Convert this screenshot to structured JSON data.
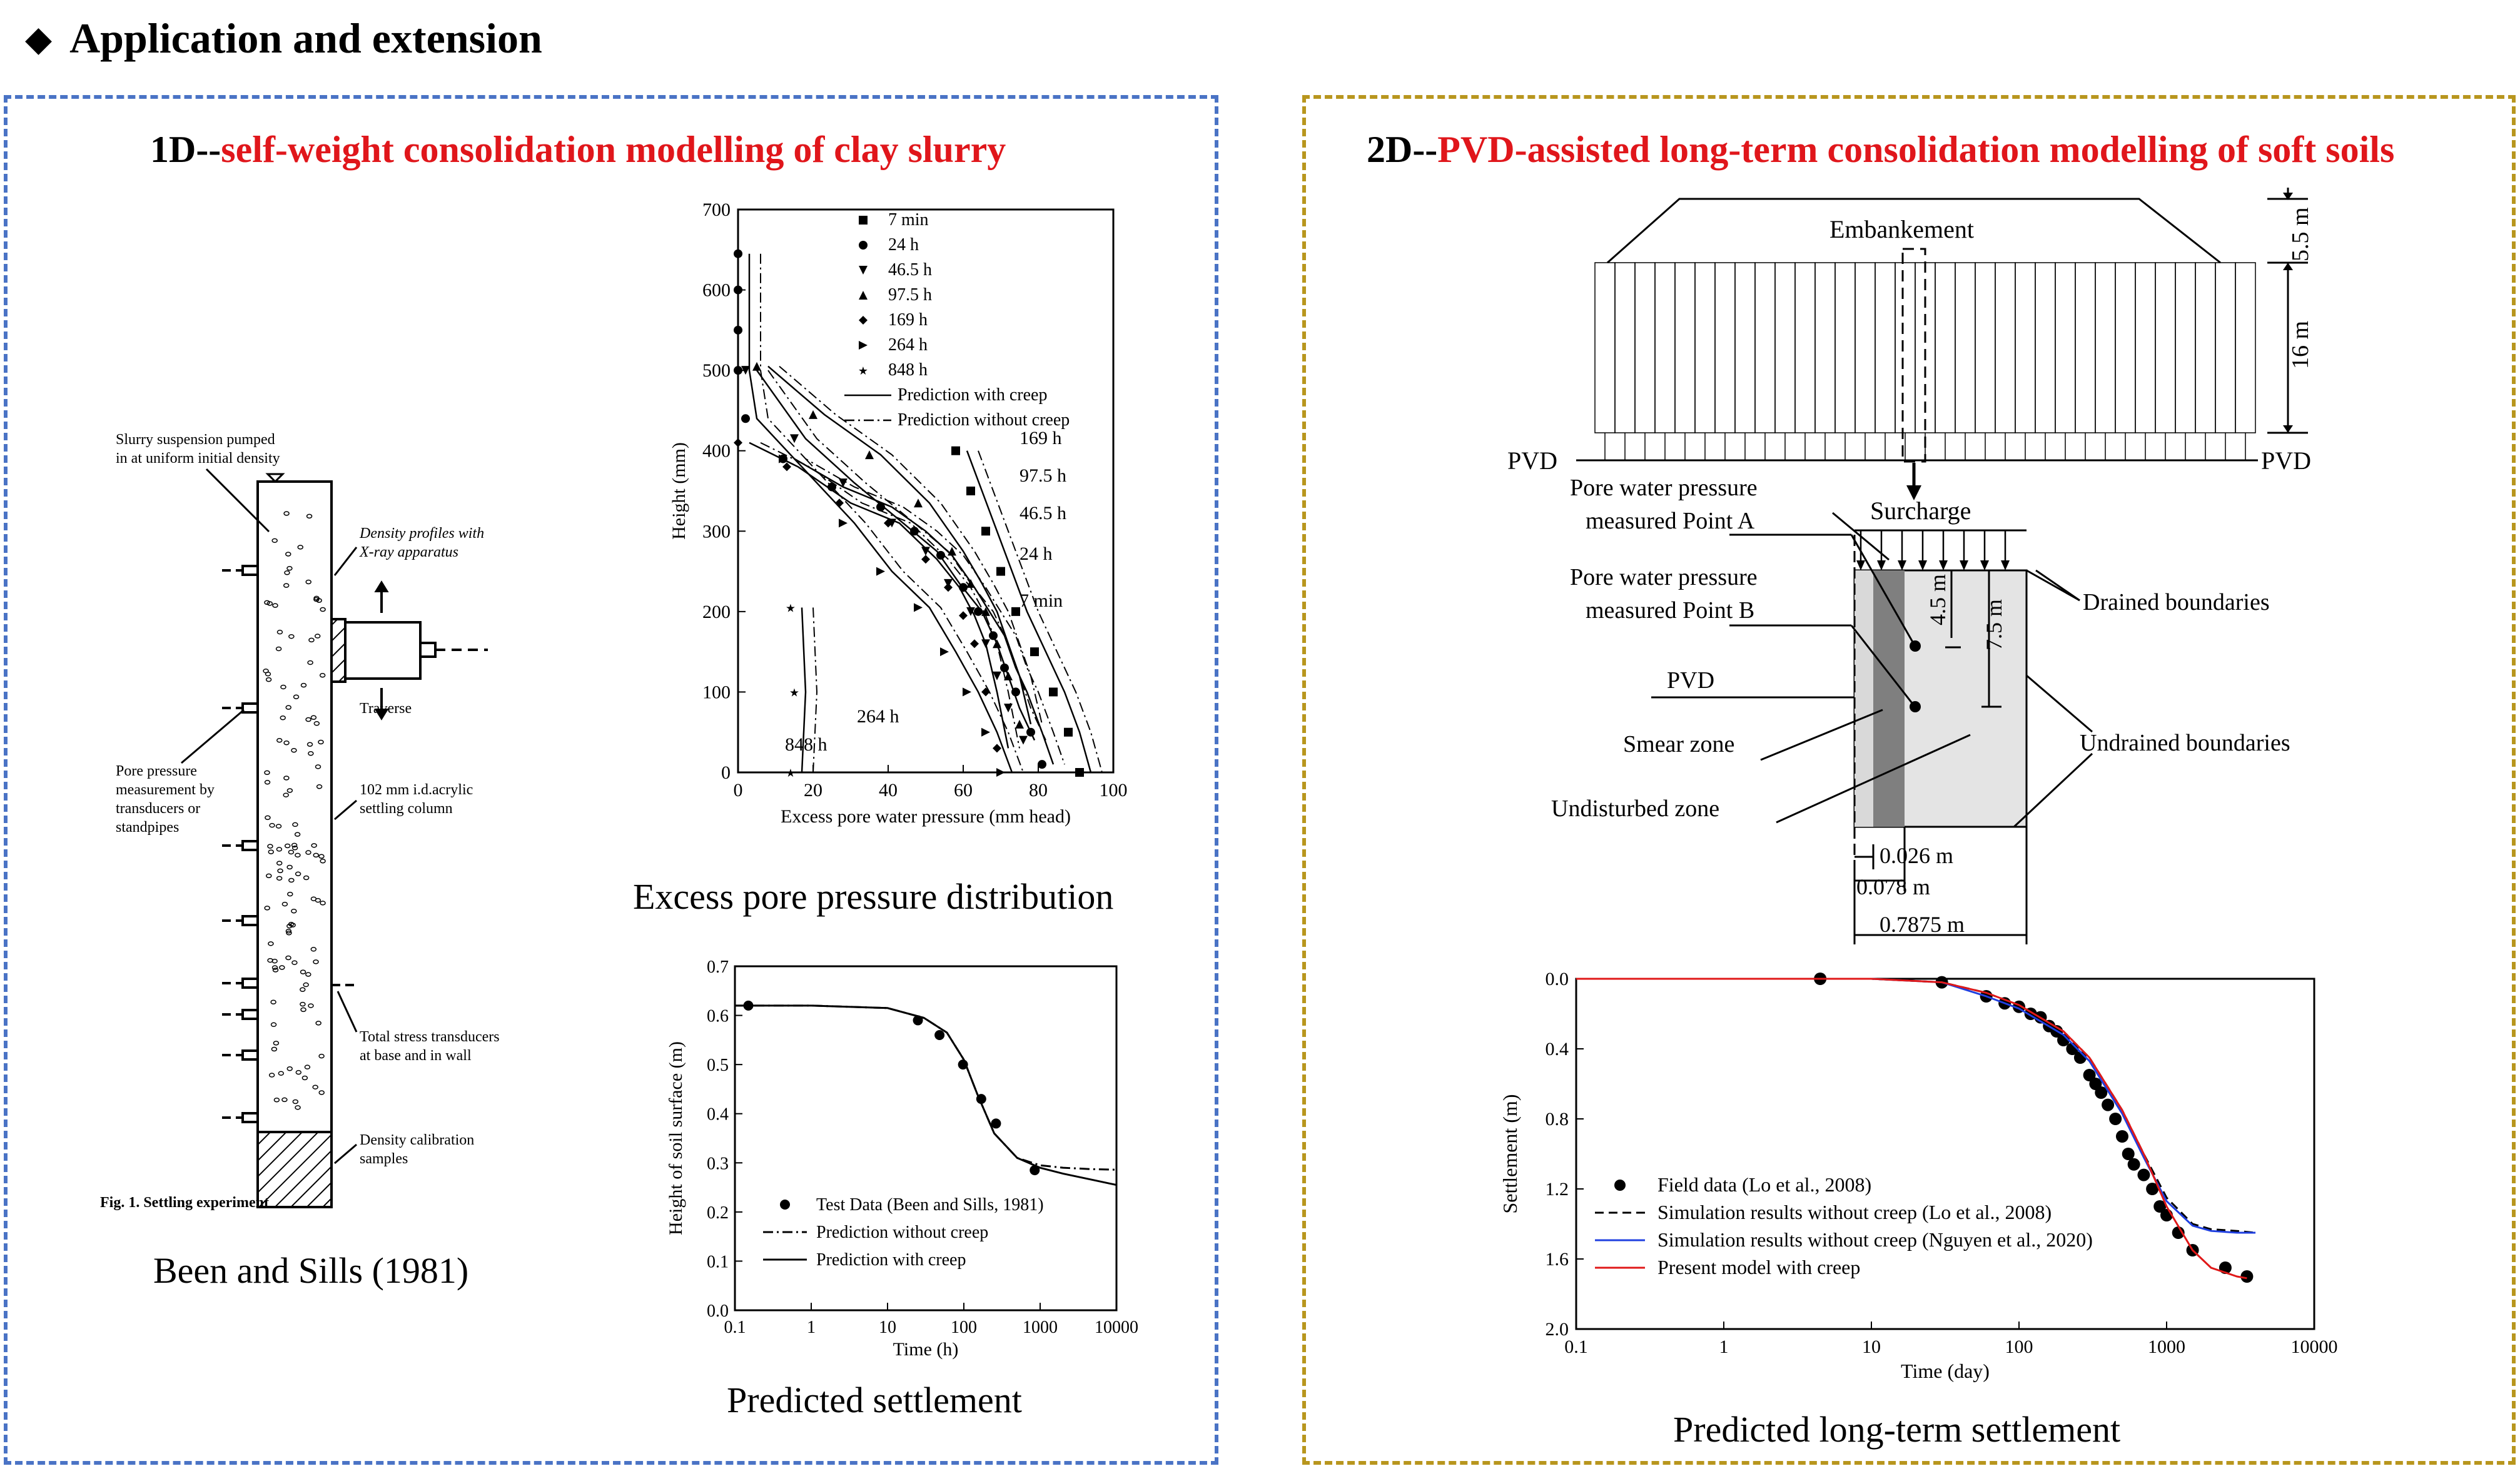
{
  "heading": {
    "icon": "black-diamond-icon",
    "text": "Application and extension"
  },
  "left_panel": {
    "title_prefix": "1D--",
    "title_red": "self-weight consolidation modelling of clay slurry",
    "experiment": {
      "labels": {
        "slurry": [
          "Slurry suspension pumped",
          "in at uniform initial density"
        ],
        "density": [
          "Density profiles with",
          "X-ray apparatus"
        ],
        "traverse": "Traverse",
        "pore": [
          "Pore pressure",
          "measurement by",
          "transducers or",
          "standpipes"
        ],
        "column": [
          "102 mm i.d.acrylic",
          "settling column"
        ],
        "stress": [
          "Total stress transducers",
          "at base and in wall"
        ],
        "calib": [
          "Density calibration",
          "samples"
        ],
        "fig_caption": "Fig. 1.   Settling experiment"
      },
      "caption": "Been and Sills (1981)"
    },
    "pore_chart": {
      "caption": "Excess pore pressure distribution"
    },
    "settle_chart": {
      "caption": "Predicted settlement"
    }
  },
  "right_panel": {
    "title_prefix": "2D--",
    "title_red": "PVD-assisted long-term consolidation modelling of soft soils",
    "diagram": {
      "embankment": "Embankement",
      "dim_top": "5.5 m",
      "dim_side": "16 m",
      "pvd_left": "PVD",
      "pvd_right": "PVD",
      "surcharge": "Surcharge",
      "point_a": [
        "Pore water pressure",
        "measured Point A"
      ],
      "point_b": [
        "Pore water pressure",
        "measured Point B"
      ],
      "pvd": "PVD",
      "smear": "Smear zone",
      "undisturbed": "Undisturbed zone",
      "drained": "Drained boundaries",
      "undrained": "Undrained boundaries",
      "d45": "4.5 m",
      "d75": "7.5 m",
      "w1": "0.026 m",
      "w2": "0.078 m",
      "w3": "0.7875 m"
    },
    "settle_chart": {
      "caption": "Predicted long-term settlement"
    }
  },
  "chart_data": [
    {
      "type": "line",
      "xlabel": "Excess pore water pressure (mm head)",
      "ylabel": "Height (mm)",
      "xlim": [
        0,
        100
      ],
      "ylim": [
        0,
        700
      ],
      "xticks": [
        0,
        20,
        40,
        60,
        80,
        100
      ],
      "yticks": [
        0,
        100,
        200,
        300,
        400,
        500,
        600,
        700
      ],
      "legend": [
        "7 min",
        "24 h",
        "46.5 h",
        "97.5 h",
        "169 h",
        "264 h",
        "848 h",
        "Prediction with creep",
        "Prediction without creep"
      ],
      "annotations": [
        "169 h",
        "97.5 h",
        "46.5 h",
        "24 h",
        "7 min",
        "264 h",
        "848 h"
      ],
      "series": [
        {
          "name": "7 min",
          "marker": "square",
          "points": [
            [
              58,
              400
            ],
            [
              62,
              350
            ],
            [
              66,
              300
            ],
            [
              70,
              250
            ],
            [
              74,
              200
            ],
            [
              79,
              150
            ],
            [
              84,
              100
            ],
            [
              88,
              50
            ],
            [
              91,
              0
            ]
          ]
        },
        {
          "name": "24 h",
          "marker": "circle",
          "points": [
            [
              0,
              645
            ],
            [
              0,
              600
            ],
            [
              0,
              550
            ],
            [
              0,
              500
            ],
            [
              2,
              440
            ],
            [
              12,
              390
            ],
            [
              25,
              355
            ],
            [
              38,
              330
            ],
            [
              47,
              300
            ],
            [
              54,
              270
            ],
            [
              60,
              230
            ],
            [
              64,
              200
            ],
            [
              68,
              170
            ],
            [
              71,
              130
            ],
            [
              74,
              100
            ],
            [
              78,
              50
            ],
            [
              81,
              10
            ]
          ]
        },
        {
          "name": "46.5 h",
          "marker": "triangle-down",
          "points": [
            [
              2,
              500
            ],
            [
              15,
              415
            ],
            [
              28,
              360
            ],
            [
              41,
              310
            ],
            [
              50,
              275
            ],
            [
              56,
              235
            ],
            [
              62,
              200
            ],
            [
              66,
              160
            ],
            [
              69,
              120
            ],
            [
              72,
              80
            ],
            [
              76,
              40
            ]
          ]
        },
        {
          "name": "97.5 h",
          "marker": "triangle-up",
          "points": [
            [
              5,
              505
            ],
            [
              20,
              445
            ],
            [
              35,
              395
            ],
            [
              48,
              335
            ],
            [
              57,
              275
            ],
            [
              62,
              235
            ],
            [
              66,
              200
            ],
            [
              69,
              160
            ],
            [
              72,
              120
            ],
            [
              75,
              60
            ]
          ]
        },
        {
          "name": "169 h",
          "marker": "diamond",
          "points": [
            [
              0,
              410
            ],
            [
              13,
              380
            ],
            [
              27,
              335
            ],
            [
              40,
              310
            ],
            [
              50,
              265
            ],
            [
              56,
              230
            ],
            [
              60,
              195
            ],
            [
              63,
              160
            ],
            [
              66,
              100
            ],
            [
              69,
              30
            ]
          ]
        },
        {
          "name": "264 h",
          "marker": "triangle-right",
          "points": [
            [
              12,
              390
            ],
            [
              28,
              310
            ],
            [
              38,
              250
            ],
            [
              48,
              205
            ],
            [
              55,
              150
            ],
            [
              61,
              100
            ],
            [
              66,
              50
            ],
            [
              70,
              0
            ]
          ]
        },
        {
          "name": "848 h",
          "marker": "star",
          "points": [
            [
              14,
              205
            ],
            [
              15,
              100
            ],
            [
              14,
              0
            ]
          ]
        }
      ]
    },
    {
      "type": "line",
      "xlabel": "Time (h)",
      "ylabel": "Height of soil surface (m)",
      "xscale": "log",
      "xlim": [
        0.1,
        10000
      ],
      "ylim": [
        0,
        0.7
      ],
      "xticks": [
        "0.1",
        "1",
        "10",
        "100",
        "1000",
        "10000"
      ],
      "yticks": [
        "0.0",
        "0.1",
        "0.2",
        "0.3",
        "0.4",
        "0.5",
        "0.6",
        "0.7"
      ],
      "legend_position": "bottom-left",
      "series": [
        {
          "name": "Test Data (Been and Sills, 1981)",
          "style": "marker",
          "x": [
            0.15,
            25,
            48,
            97.5,
            169,
            264,
            848
          ],
          "y": [
            0.62,
            0.59,
            0.56,
            0.5,
            0.43,
            0.38,
            0.285
          ]
        },
        {
          "name": "Prediction without creep",
          "style": "dash-dot",
          "x": [
            0.1,
            1,
            10,
            30,
            60,
            100,
            150,
            250,
            500,
            1000,
            2000,
            5000,
            10000
          ],
          "y": [
            0.62,
            0.62,
            0.615,
            0.595,
            0.565,
            0.51,
            0.44,
            0.36,
            0.31,
            0.295,
            0.29,
            0.287,
            0.286
          ]
        },
        {
          "name": "Prediction with creep",
          "style": "solid",
          "x": [
            0.1,
            1,
            10,
            30,
            60,
            100,
            150,
            250,
            500,
            1000,
            2000,
            5000,
            10000
          ],
          "y": [
            0.62,
            0.62,
            0.615,
            0.595,
            0.565,
            0.51,
            0.44,
            0.36,
            0.31,
            0.29,
            0.278,
            0.265,
            0.255
          ]
        }
      ]
    },
    {
      "type": "line",
      "xlabel": "Time (day)",
      "ylabel": "Settlement (m)",
      "xscale": "log",
      "xlim": [
        0.1,
        10000
      ],
      "ylim": [
        2.0,
        0.0
      ],
      "xticks": [
        "0.1",
        "1",
        "10",
        "100",
        "1000",
        "10000"
      ],
      "yticks": [
        "0.0",
        "0.4",
        "0.8",
        "1.2",
        "1.6",
        "2.0"
      ],
      "legend_position": "bottom-left",
      "series": [
        {
          "name": "Field data (Lo et al., 2008)",
          "style": "marker",
          "x": [
            4.5,
            30,
            60,
            80,
            100,
            120,
            140,
            160,
            180,
            200,
            230,
            260,
            300,
            330,
            360,
            400,
            450,
            500,
            550,
            600,
            700,
            800,
            900,
            1000,
            1200,
            1500,
            2500,
            3500
          ],
          "y": [
            0.0,
            0.02,
            0.1,
            0.14,
            0.16,
            0.2,
            0.22,
            0.27,
            0.3,
            0.35,
            0.4,
            0.45,
            0.55,
            0.6,
            0.65,
            0.72,
            0.8,
            0.9,
            1.0,
            1.06,
            1.12,
            1.2,
            1.3,
            1.35,
            1.45,
            1.55,
            1.65,
            1.7
          ]
        },
        {
          "name": "Simulation results without creep (Lo et al., 2008)",
          "style": "dash",
          "x": [
            0.1,
            10,
            30,
            60,
            100,
            200,
            300,
            500,
            700,
            1000,
            1500,
            2000,
            3000,
            4000
          ],
          "y": [
            0.0,
            0.0,
            0.02,
            0.08,
            0.15,
            0.3,
            0.45,
            0.75,
            1.0,
            1.25,
            1.4,
            1.43,
            1.44,
            1.45
          ]
        },
        {
          "name": "Simulation results without creep (Nguyen et al., 2020)",
          "style": "solid-blue",
          "x": [
            0.1,
            10,
            30,
            60,
            100,
            200,
            300,
            500,
            700,
            1000,
            1500,
            2000,
            3000,
            4000
          ],
          "y": [
            0.0,
            0.0,
            0.02,
            0.1,
            0.17,
            0.32,
            0.47,
            0.77,
            1.02,
            1.27,
            1.41,
            1.44,
            1.45,
            1.45
          ]
        },
        {
          "name": "Present model with creep",
          "style": "solid-red",
          "x": [
            0.1,
            10,
            30,
            60,
            100,
            200,
            300,
            500,
            700,
            1000,
            1500,
            2000,
            3000,
            3500
          ],
          "y": [
            0.0,
            0.0,
            0.02,
            0.08,
            0.15,
            0.3,
            0.45,
            0.75,
            1.0,
            1.3,
            1.55,
            1.65,
            1.7,
            1.71
          ]
        }
      ]
    }
  ]
}
